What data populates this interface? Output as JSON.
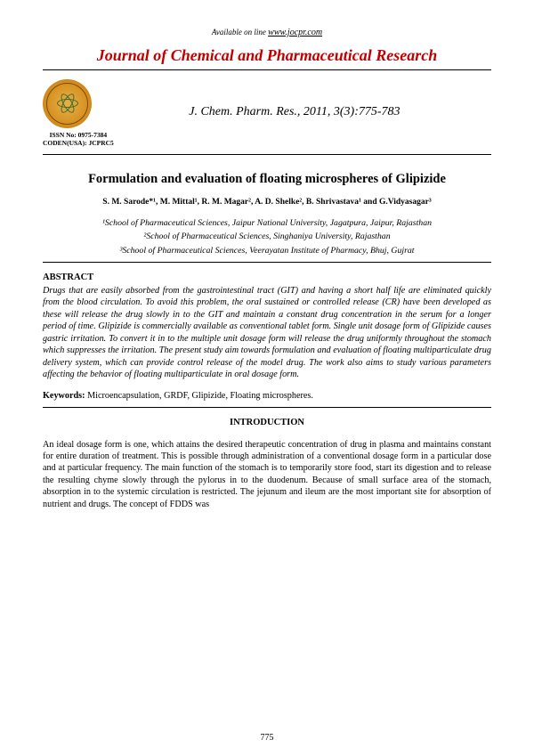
{
  "available_prefix": "Available on line ",
  "available_url": "www.jocpr.com",
  "journal_name": "Journal of Chemical and Pharmaceutical Research",
  "citation": "J. Chem. Pharm. Res., 2011, 3(3):775-783",
  "issn_line1": "ISSN No: 0975-7384",
  "issn_line2": "CODEN(USA): JCPRC5",
  "title": "Formulation and evaluation of floating microspheres of Glipizide",
  "authors_html": "S. M. Sarode*¹, M. Mittal¹, R. M. Magar², A. D. Shelke², B. Shrivastava¹ and G.Vidyasagar³",
  "affil1": "¹School of Pharmaceutical Sciences, Jaipur National University, Jagatpura, Jaipur, Rajasthan",
  "affil2": "²School of Pharmaceutical Sciences, Singhaniya University, Rajasthan",
  "affil3": "³School of Pharmaceutical Sciences, Veerayatan Institute of Pharmacy, Bhuj, Gujrat",
  "abstract_head": "ABSTRACT",
  "abstract_body": "Drugs that are easily absorbed from the gastrointestinal tract (GIT) and having a short half life are eliminated quickly from the blood circulation. To avoid this problem, the oral sustained or controlled release (CR) have been developed as these will release the drug slowly in to the GIT and maintain a constant drug concentration in the serum for a longer period of time. Glipizide is commercially available as conventional tablet form. Single unit dosage form of Glipizide causes gastric irritation. To convert it in to the multiple unit dosage form will release the drug uniformly throughout the stomach which suppresses the irritation. The present study aim towards formulation and evaluation of floating multiparticulate drug delivery system, which can provide control release of the model drug. The work also aims to study various parameters affecting the behavior of floating multiparticulate in oral dosage form.",
  "keywords_label": "Keywords: ",
  "keywords_text": "Microencapsulation, GRDF, Glipizide, Floating microspheres.",
  "intro_head": "INTRODUCTION",
  "intro_body": "An ideal dosage form is one, which attains the desired therapeutic concentration of drug in plasma and maintains constant for entire duration of treatment. This is possible through administration of a conventional dosage form in a particular dose and at particular frequency. The main function of the stomach is to temporarily store food, start its digestion and to release the resulting chyme slowly through the pylorus in to the duodenum. Because of small surface area of the stomach, absorption in to the systemic circulation is restricted. The jejunum and ileum are the most important site for absorption of nutrient and drugs. The concept of FDDS was",
  "page_number": "775",
  "colors": {
    "journal_red": "#c00000",
    "text": "#000000",
    "bg": "#ffffff",
    "logo_grad_inner": "#e8b04a",
    "logo_grad_outer": "#b57310",
    "atom_green": "#3a6b2a"
  }
}
